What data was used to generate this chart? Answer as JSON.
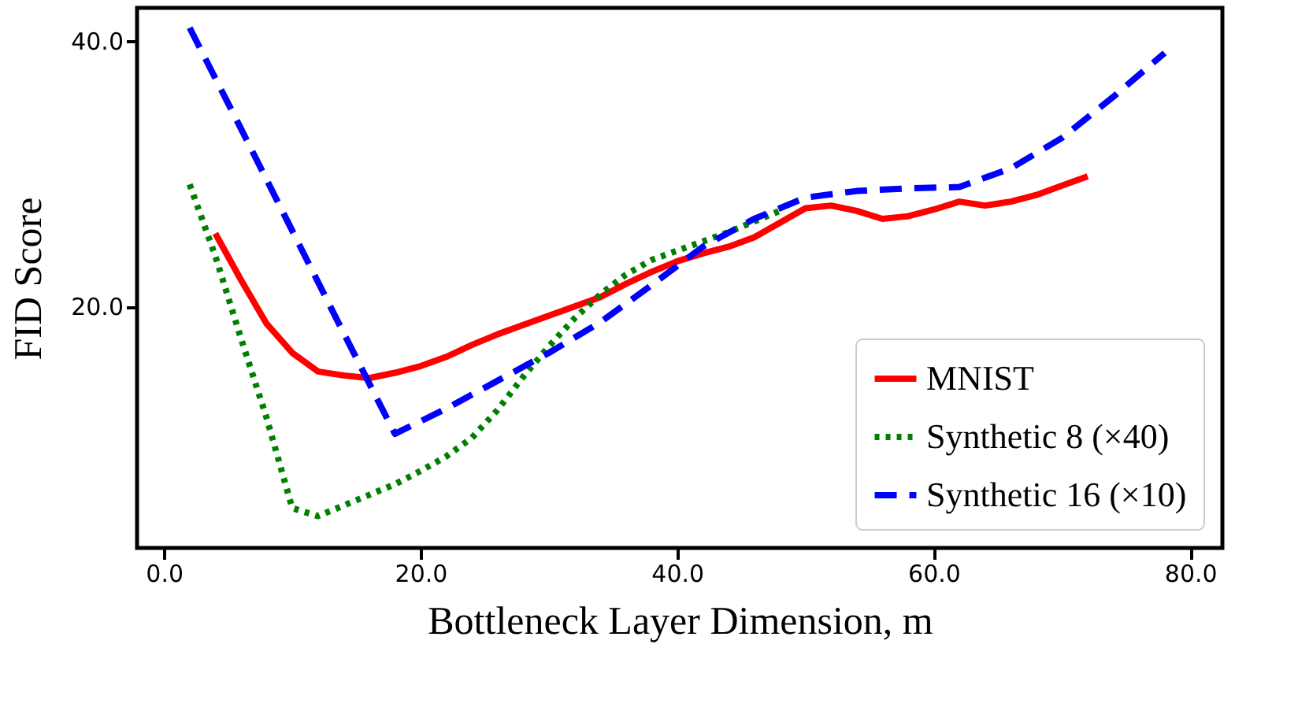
{
  "chart_data": {
    "type": "line",
    "xlabel": "Bottleneck Layer Dimension, m",
    "ylabel": "FID Score",
    "xlim": [
      -2.1,
      82.5
    ],
    "ylim": [
      1.8,
      42.5
    ],
    "xticks": [
      {
        "value": 0,
        "label": "0.0"
      },
      {
        "value": 20,
        "label": "20.0"
      },
      {
        "value": 40,
        "label": "40.0"
      },
      {
        "value": 60,
        "label": "60.0"
      },
      {
        "value": 80,
        "label": "80.0"
      }
    ],
    "yticks": [
      {
        "value": 20,
        "label": "20.0"
      },
      {
        "value": 40,
        "label": "40.0"
      }
    ],
    "grid": false,
    "legend": "bottom right",
    "series": [
      {
        "name": "MNIST",
        "color": "#ff0000",
        "line_style": "solid",
        "x": [
          4,
          6,
          8,
          10,
          12,
          14,
          16,
          18,
          20,
          22,
          24,
          26,
          28,
          30,
          32,
          34,
          36,
          38,
          40,
          42,
          44,
          46,
          48,
          50,
          52,
          54,
          56,
          58,
          60,
          62,
          64,
          66,
          68,
          70,
          72
        ],
        "values": [
          25.5,
          22.0,
          18.7,
          16.5,
          15.1,
          14.8,
          14.6,
          15.0,
          15.5,
          16.2,
          17.1,
          17.9,
          18.6,
          19.3,
          20.0,
          20.7,
          21.7,
          22.6,
          23.4,
          24.0,
          24.5,
          25.2,
          26.3,
          27.4,
          27.6,
          27.2,
          26.6,
          26.8,
          27.3,
          27.9,
          27.6,
          27.9,
          28.4,
          29.1,
          29.8
        ]
      },
      {
        "name": "Synthetic 8 (×40)",
        "color": "#008000",
        "line_style": "dotted",
        "x": [
          2,
          4,
          6,
          8,
          10,
          12,
          14,
          16,
          18,
          20,
          22,
          24,
          26,
          28,
          30,
          32,
          34,
          36,
          38,
          40,
          42,
          44,
          46,
          48
        ],
        "values": [
          29.2,
          23.8,
          17.6,
          11.6,
          4.8,
          4.2,
          5.0,
          5.8,
          6.6,
          7.6,
          8.7,
          10.1,
          12.2,
          14.7,
          17.0,
          19.1,
          20.9,
          22.4,
          23.5,
          24.2,
          24.9,
          25.6,
          26.4,
          27.2
        ]
      },
      {
        "name": "Synthetic 16 (×10)",
        "color": "#0000ff",
        "line_style": "dashed",
        "x": [
          2,
          6,
          10,
          14,
          18,
          22,
          26,
          30,
          34,
          38,
          42,
          46,
          50,
          54,
          58,
          62,
          66,
          70,
          74,
          78
        ],
        "values": [
          41.0,
          33.4,
          25.7,
          18.0,
          10.4,
          12.3,
          14.4,
          16.5,
          18.8,
          21.6,
          24.5,
          26.6,
          28.2,
          28.7,
          28.9,
          29.0,
          30.4,
          32.7,
          35.8,
          39.1
        ]
      }
    ]
  }
}
